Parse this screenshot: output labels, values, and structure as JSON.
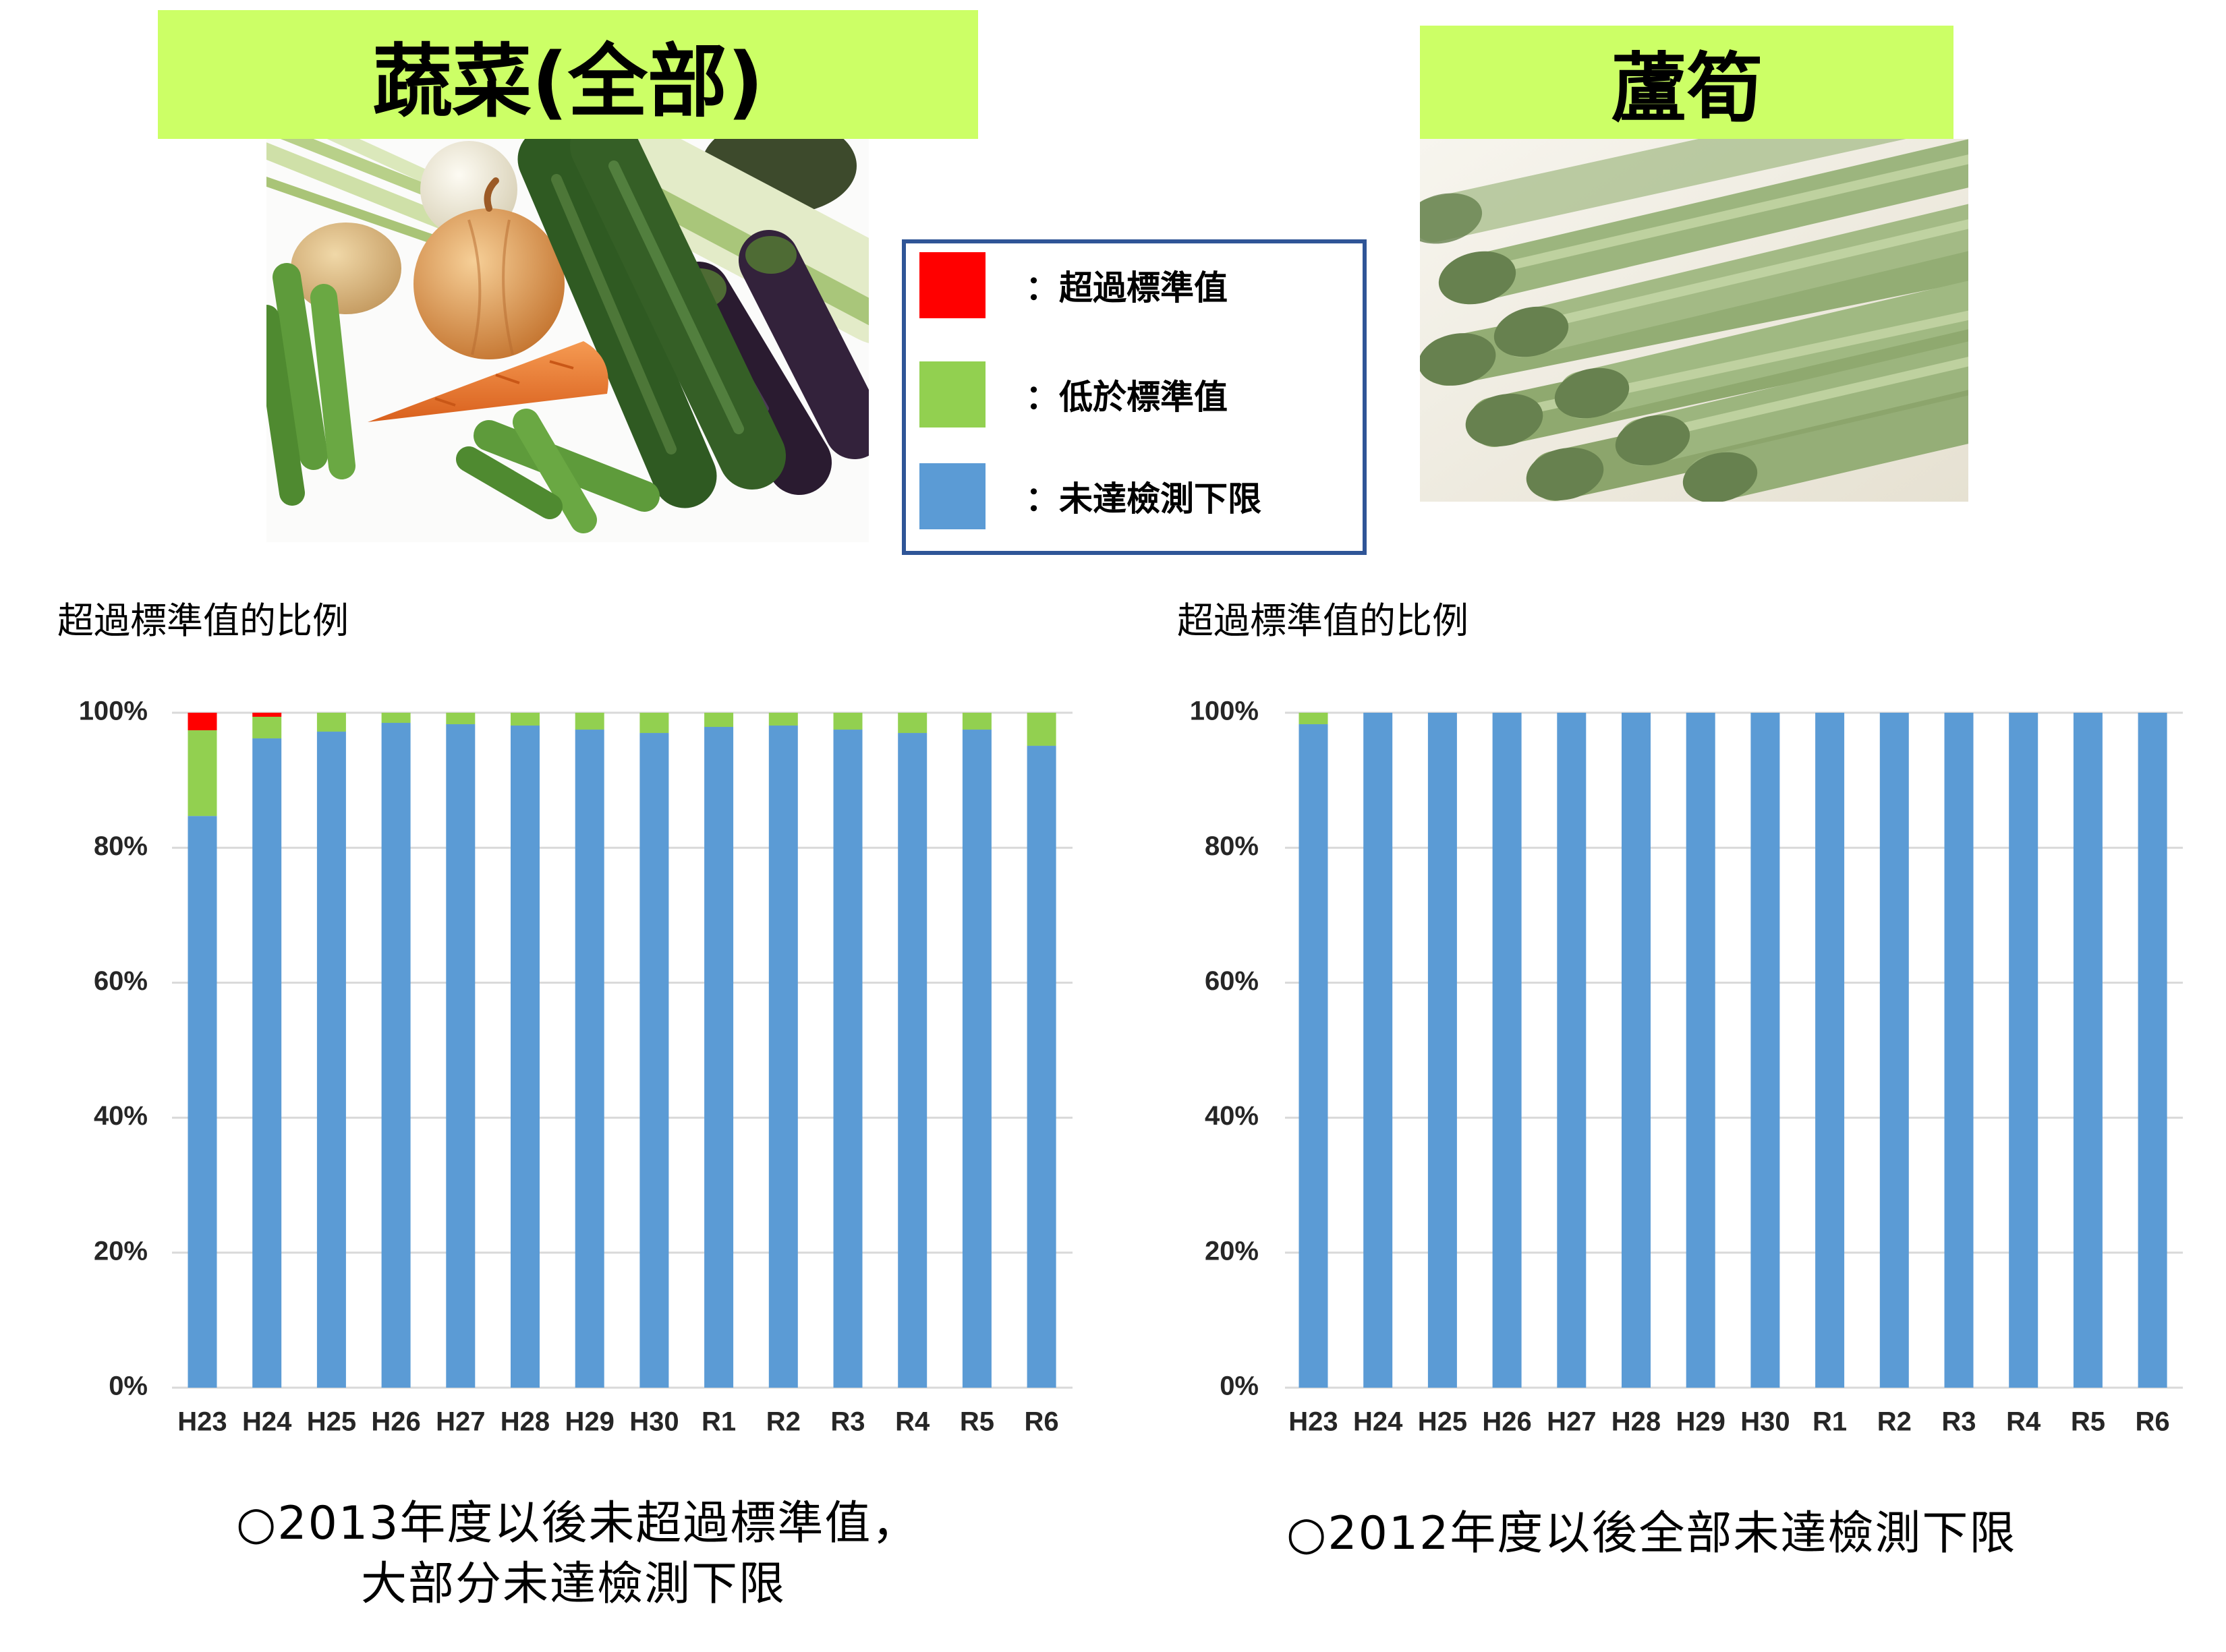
{
  "theme": {
    "heading_bg": "#ccff66",
    "legend_border": "#2f5597",
    "grid": "#d9d9d9"
  },
  "legend": {
    "separator": "："
  },
  "captions": {
    "left": [
      "○2013年度以後未超過標準值，",
      "大部分未達檢測下限"
    ],
    "right": "○2012年度以後全部未達檢測下限"
  },
  "chart_data": [
    {
      "type": "bar",
      "stacked": true,
      "title": "蔬菜(全部)",
      "xlabel": "",
      "ylabel": "超過標準值的比例",
      "ylim": [
        0,
        100
      ],
      "yticks": [
        "0%",
        "20%",
        "40%",
        "60%",
        "80%",
        "100%"
      ],
      "grid": true,
      "legend": "top",
      "categories": [
        "H23",
        "H24",
        "H25",
        "H26",
        "H27",
        "H28",
        "H29",
        "H30",
        "R1",
        "R2",
        "R3",
        "R4",
        "R5",
        "R6"
      ],
      "series": [
        {
          "name": "超過標準值",
          "color": "#ff0000",
          "values": [
            2.6,
            0.6,
            0,
            0,
            0,
            0,
            0,
            0,
            0,
            0,
            0,
            0,
            0,
            0
          ]
        },
        {
          "name": "低於標準值",
          "color": "#92d050",
          "values": [
            12.7,
            3.2,
            2.8,
            1.5,
            1.7,
            1.9,
            2.5,
            3.0,
            2.1,
            1.9,
            2.5,
            3.0,
            2.5,
            4.9
          ]
        },
        {
          "name": "未達檢測下限",
          "color": "#5b9bd5",
          "values": [
            84.7,
            96.2,
            97.2,
            98.5,
            98.3,
            98.1,
            97.5,
            97.0,
            97.9,
            98.1,
            97.5,
            97.0,
            97.5,
            95.1
          ]
        }
      ]
    },
    {
      "type": "bar",
      "stacked": true,
      "title": "蘆筍",
      "xlabel": "",
      "ylabel": "超過標準值的比例",
      "ylim": [
        0,
        100
      ],
      "yticks": [
        "0%",
        "20%",
        "40%",
        "60%",
        "80%",
        "100%"
      ],
      "grid": true,
      "legend": "top",
      "categories": [
        "H23",
        "H24",
        "H25",
        "H26",
        "H27",
        "H28",
        "H29",
        "H30",
        "R1",
        "R2",
        "R3",
        "R4",
        "R5",
        "R6"
      ],
      "series": [
        {
          "name": "超過標準值",
          "color": "#ff0000",
          "values": [
            0,
            0,
            0,
            0,
            0,
            0,
            0,
            0,
            0,
            0,
            0,
            0,
            0,
            0
          ]
        },
        {
          "name": "低於標準值",
          "color": "#92d050",
          "values": [
            1.7,
            0,
            0,
            0,
            0,
            0,
            0,
            0,
            0,
            0,
            0,
            0,
            0,
            0
          ]
        },
        {
          "name": "未達檢測下限",
          "color": "#5b9bd5",
          "values": [
            98.3,
            100,
            100,
            100,
            100,
            100,
            100,
            100,
            100,
            100,
            100,
            100,
            100,
            100
          ]
        }
      ]
    }
  ]
}
